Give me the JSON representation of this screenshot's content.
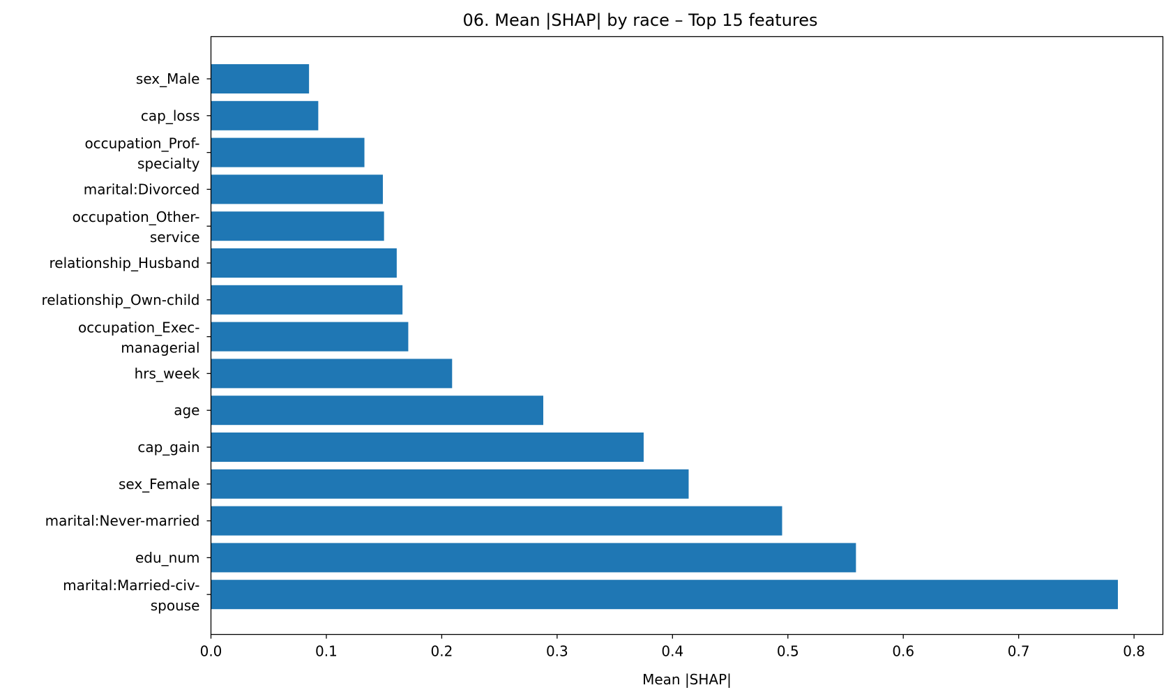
{
  "chart_data": {
    "type": "bar",
    "orientation": "horizontal",
    "title": "06. Mean |SHAP| by race – Top 15 features",
    "xlabel": "Mean |SHAP|",
    "ylabel": "",
    "xlim": [
      0,
      0.825
    ],
    "xticks": [
      "0.0",
      "0.1",
      "0.2",
      "0.3",
      "0.4",
      "0.5",
      "0.6",
      "0.7",
      "0.8"
    ],
    "grid": false,
    "bar_color": "#1f77b4",
    "categories": [
      [
        "sex_Male"
      ],
      [
        "cap_loss"
      ],
      [
        "occupation_Prof-",
        "specialty"
      ],
      [
        "marital:Divorced"
      ],
      [
        "occupation_Other-",
        "service"
      ],
      [
        "relationship_Husband"
      ],
      [
        "relationship_Own-child"
      ],
      [
        "occupation_Exec-",
        "managerial"
      ],
      [
        "hrs_week"
      ],
      [
        "age"
      ],
      [
        "cap_gain"
      ],
      [
        "sex_Female"
      ],
      [
        "marital:Never-married"
      ],
      [
        "edu_num"
      ],
      [
        "marital:Married-civ-",
        "spouse"
      ]
    ],
    "values": [
      0.085,
      0.093,
      0.133,
      0.149,
      0.15,
      0.161,
      0.166,
      0.171,
      0.209,
      0.288,
      0.375,
      0.414,
      0.495,
      0.559,
      0.786
    ]
  }
}
